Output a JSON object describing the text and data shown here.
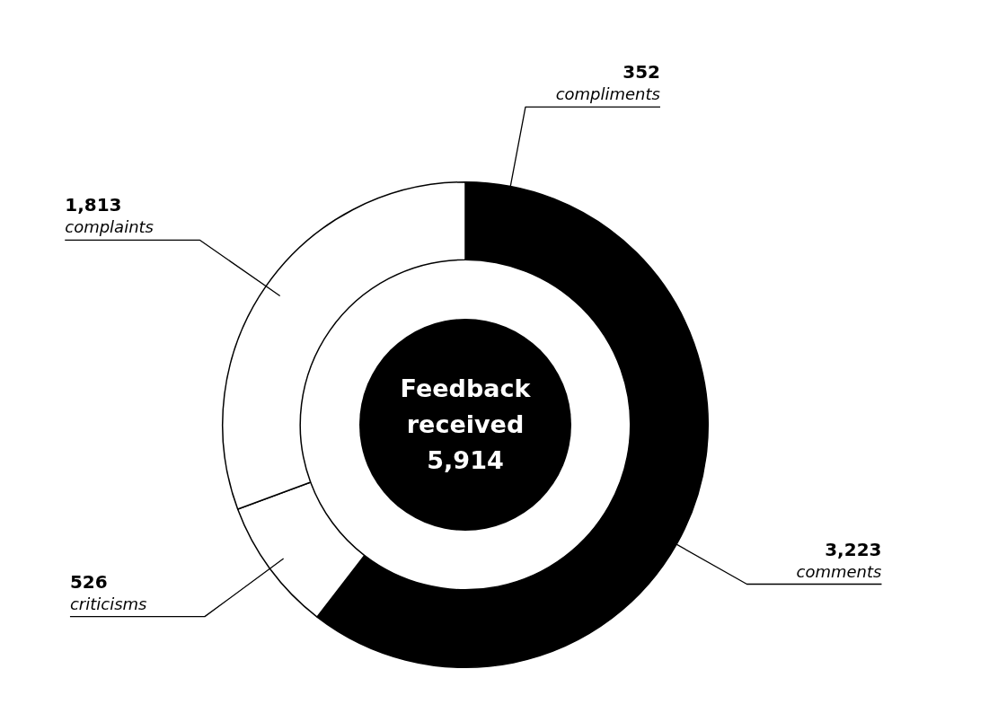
{
  "chart_data": {
    "type": "donut",
    "title": "Feedback received",
    "annotations": [
      "5,914"
    ],
    "categories": [
      "compliments",
      "comments",
      "criticisms",
      "complaints"
    ],
    "values": [
      352,
      3223,
      526,
      1813
    ],
    "colors": [
      "#000000",
      "#000000",
      "#ffffff",
      "#ffffff"
    ],
    "value_labels": [
      "352",
      "3,223",
      "526",
      "1,813"
    ],
    "legend": false
  }
}
